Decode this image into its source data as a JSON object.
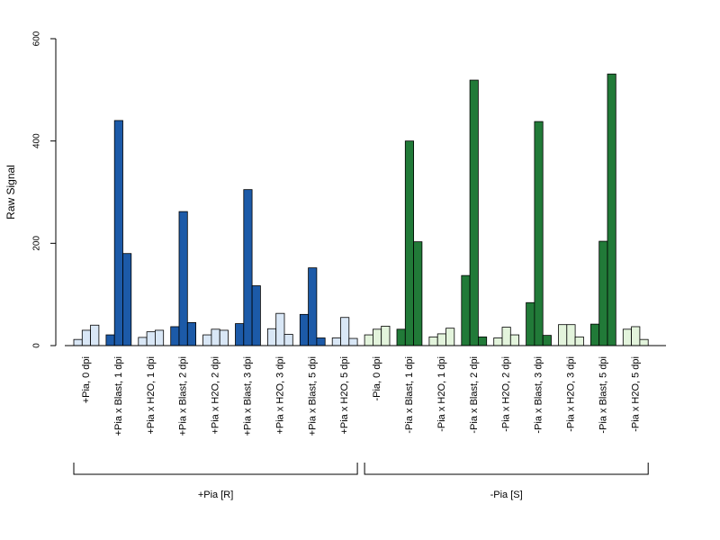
{
  "chart_data": {
    "type": "bar",
    "ylabel": "Raw Signal",
    "xlabel": "",
    "title": "",
    "ylim": [
      0,
      600
    ],
    "yticks": [
      0,
      200,
      400,
      600
    ],
    "grid": false,
    "legend": "none",
    "categories": [
      "+Pia, 0 dpi",
      "+Pia x Blast, 1 dpi",
      "+Pia x H2O, 1 dpi",
      "+Pia x Blast, 2 dpi",
      "+Pia x H2O, 2 dpi",
      "+Pia x Blast, 3 dpi",
      "+Pia x H2O, 3 dpi",
      "+Pia x Blast, 5 dpi",
      "+Pia x H2O, 5 dpi",
      "-Pia, 0 dpi",
      "-Pia x Blast, 1 dpi",
      "-Pia x H2O, 1 dpi",
      "-Pia x Blast, 2 dpi",
      "-Pia x H2O, 2 dpi",
      "-Pia x Blast, 3 dpi",
      "-Pia x H2O, 3 dpi",
      "-Pia x Blast, 5 dpi",
      "-Pia x H2O, 5 dpi"
    ],
    "replicate_values": [
      [
        12,
        30,
        40
      ],
      [
        21,
        440,
        180
      ],
      [
        16,
        27,
        30
      ],
      [
        37,
        262,
        45
      ],
      [
        21,
        32,
        30
      ],
      [
        43,
        305,
        117
      ],
      [
        33,
        63,
        22
      ],
      [
        61,
        152,
        15
      ],
      [
        15,
        55,
        14
      ],
      [
        21,
        32,
        38
      ],
      [
        32,
        400,
        203
      ],
      [
        17,
        23,
        34
      ],
      [
        137,
        519,
        17
      ],
      [
        15,
        36,
        21
      ],
      [
        84,
        438,
        20
      ],
      [
        41,
        41,
        17
      ],
      [
        42,
        204,
        531
      ],
      [
        32,
        37,
        12
      ]
    ],
    "groups": [
      {
        "label": "+Pia [R]",
        "start": 0,
        "end": 8
      },
      {
        "label": "-Pia [S]",
        "start": 9,
        "end": 17
      }
    ],
    "colors": {
      "pia_plus_blast": "#1c5aa8",
      "pia_plus_h2o": "#d9e7f6",
      "pia_minus_blast": "#217a38",
      "pia_minus_h2o": "#e3f4dc",
      "axis": "#000000"
    },
    "category_colors": [
      "pia_plus_h2o",
      "pia_plus_blast",
      "pia_plus_h2o",
      "pia_plus_blast",
      "pia_plus_h2o",
      "pia_plus_blast",
      "pia_plus_h2o",
      "pia_plus_blast",
      "pia_plus_h2o",
      "pia_minus_h2o",
      "pia_minus_blast",
      "pia_minus_h2o",
      "pia_minus_blast",
      "pia_minus_h2o",
      "pia_minus_blast",
      "pia_minus_h2o",
      "pia_minus_blast",
      "pia_minus_h2o"
    ]
  }
}
